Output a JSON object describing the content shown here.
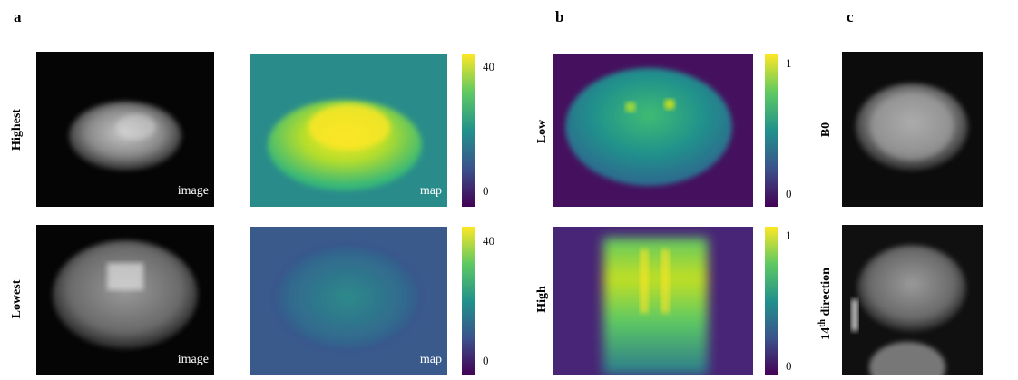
{
  "panels": [
    {
      "label": "a",
      "rows": [
        {
          "label": "Highest",
          "image_caption": "image",
          "map_caption": "map",
          "colorbar_ticks": [
            "40",
            "0"
          ]
        },
        {
          "label": "Lowest",
          "image_caption": "image",
          "map_caption": "map",
          "colorbar_ticks": [
            "40",
            "0"
          ]
        }
      ]
    },
    {
      "label": "b",
      "rows": [
        {
          "label": "Low",
          "colorbar_ticks": [
            "1",
            "0"
          ]
        },
        {
          "label": "High",
          "colorbar_ticks": [
            "1",
            "0"
          ]
        }
      ]
    },
    {
      "label": "c",
      "rows": [
        {
          "label": "B0"
        },
        {
          "label_parts": [
            "14",
            "th",
            " direction"
          ]
        }
      ]
    }
  ]
}
